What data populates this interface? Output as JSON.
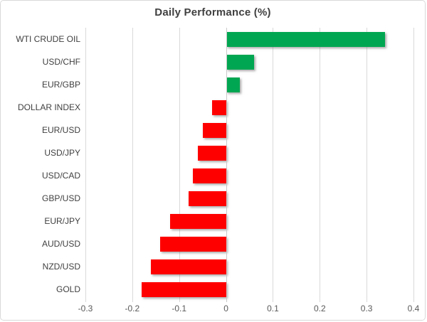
{
  "chart": {
    "title": "Daily Performance (%)"
  },
  "colors": {
    "positive_bar": "#00A651",
    "negative_bar": "#FF0000",
    "gridline": "#d9d9d9",
    "title_text": "#404040",
    "label_text": "#404040",
    "tick_text": "#595959"
  },
  "chart_data": {
    "type": "bar",
    "orientation": "horizontal",
    "title": "Daily Performance (%)",
    "categories": [
      "WTI CRUDE OIL",
      "USD/CHF",
      "EUR/GBP",
      "DOLLAR INDEX",
      "EUR/USD",
      "USD/JPY",
      "USD/CAD",
      "GBP/USD",
      "EUR/JPY",
      "AUD/USD",
      "NZD/USD",
      "GOLD"
    ],
    "values": [
      0.34,
      0.06,
      0.03,
      -0.03,
      -0.05,
      -0.06,
      -0.07,
      -0.08,
      -0.12,
      -0.14,
      -0.16,
      -0.18
    ],
    "xlabel": "",
    "ylabel": "",
    "xlim": [
      -0.3,
      0.4
    ],
    "xticks": [
      -0.3,
      -0.2,
      -0.1,
      0,
      0.1,
      0.2,
      0.3,
      0.4
    ],
    "xtick_labels": [
      "-0.3",
      "-0.2",
      "-0.1",
      "0",
      "0.1",
      "0.2",
      "0.3",
      "0.4"
    ],
    "grid": true,
    "legend": "none",
    "positive_color": "#00A651",
    "negative_color": "#FF0000"
  }
}
